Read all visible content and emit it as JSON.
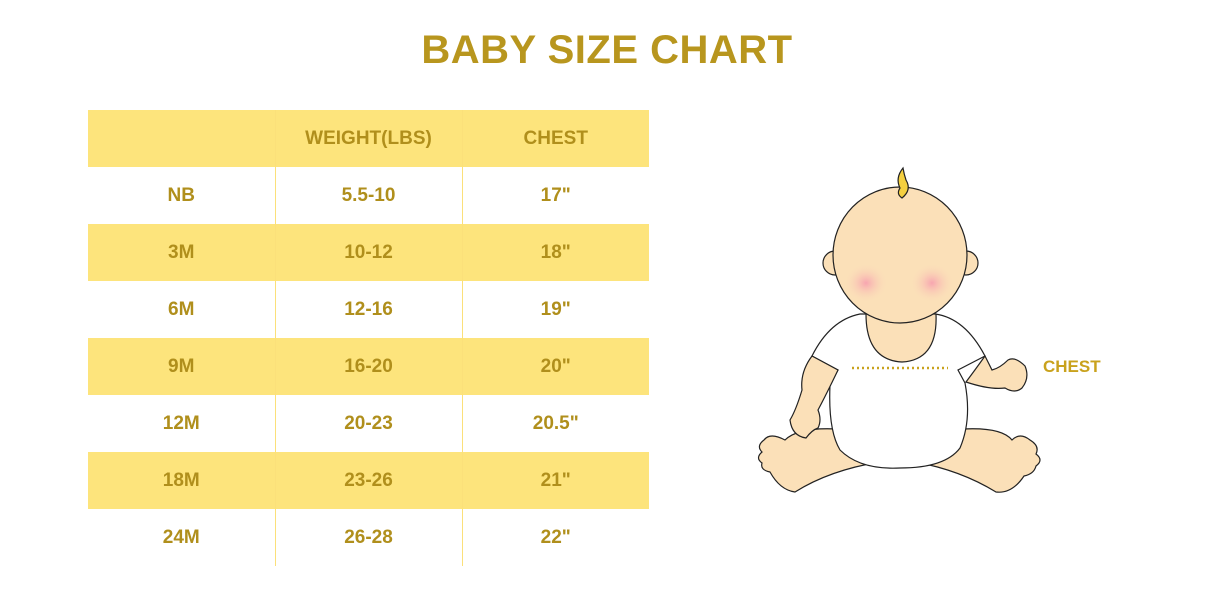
{
  "title": "BABY SIZE CHART",
  "table": {
    "headers": [
      "",
      "WEIGHT(LBS)",
      "CHEST"
    ],
    "rows": [
      [
        "NB",
        "5.5-10",
        "17\""
      ],
      [
        "3M",
        "10-12",
        "18\""
      ],
      [
        "6M",
        "12-16",
        "19\""
      ],
      [
        "9M",
        "16-20",
        "20\""
      ],
      [
        "12M",
        "20-23",
        "20.5\""
      ],
      [
        "18M",
        "23-26",
        "21\""
      ],
      [
        "24M",
        "26-28",
        "22\""
      ]
    ]
  },
  "illustration": {
    "chest_label": "CHEST"
  },
  "colors": {
    "accent_text": "#b8961e",
    "stripe": "#fde47c",
    "skin": "#fbe0b8"
  }
}
